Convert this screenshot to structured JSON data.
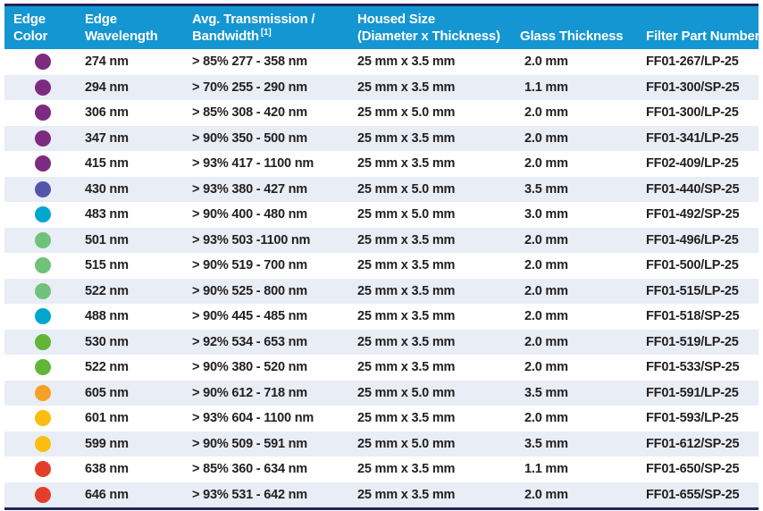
{
  "colors": {
    "header_bg": "#1496D2",
    "header_text": "#FFFFFF",
    "border_dark": "#26245D",
    "row_alt_bg": "#E8EDF6",
    "row_bg": "#FFFFFF",
    "text": "#231F20"
  },
  "dot_palette": {
    "purple": "#7D2B80",
    "indigo": "#5356A8",
    "cyan": "#00A7CF",
    "light-green": "#6EC378",
    "green": "#61B638",
    "orange": "#F6A126",
    "gold": "#FBBE10",
    "red": "#E33E2B"
  },
  "table": {
    "columns": [
      {
        "id": "edge_color",
        "line1": "Edge",
        "line2": "Color"
      },
      {
        "id": "edge_wavelength",
        "line1": "Edge",
        "line2": "Wavelength"
      },
      {
        "id": "transmission",
        "line1": "Avg. Transmission /",
        "line2": "Bandwidth",
        "line2_sup": "[1]"
      },
      {
        "id": "housed_size",
        "line1": "Housed Size",
        "line2": "(Diameter x Thickness)"
      },
      {
        "id": "glass_thickness",
        "line1": "Glass Thickness"
      },
      {
        "id": "part_number",
        "line1": "Filter Part Number"
      }
    ],
    "rows": [
      {
        "edge_color_name": "purple",
        "edge_color_hex": "#7D2B80",
        "edge_wavelength": "274 nm",
        "transmission": "> 85% 277 - 358 nm",
        "housed_size": "25 mm x 3.5 mm",
        "glass_thickness": "2.0 mm",
        "part_number": "FF01-267/LP-25"
      },
      {
        "edge_color_name": "purple",
        "edge_color_hex": "#7D2B80",
        "edge_wavelength": "294 nm",
        "transmission": "> 70% 255 - 290 nm",
        "housed_size": "25 mm x 3.5 mm",
        "glass_thickness": "1.1 mm",
        "part_number": "FF01-300/SP-25"
      },
      {
        "edge_color_name": "purple",
        "edge_color_hex": "#7D2B80",
        "edge_wavelength": "306 nm",
        "transmission": "> 85% 308 - 420 nm",
        "housed_size": "25 mm x 5.0 mm",
        "glass_thickness": "2.0 mm",
        "part_number": "FF01-300/LP-25"
      },
      {
        "edge_color_name": "purple",
        "edge_color_hex": "#7D2B80",
        "edge_wavelength": "347 nm",
        "transmission": "> 90% 350 - 500 nm",
        "housed_size": "25 mm x 3.5 mm",
        "glass_thickness": "2.0 mm",
        "part_number": "FF01-341/LP-25"
      },
      {
        "edge_color_name": "purple",
        "edge_color_hex": "#7D2B80",
        "edge_wavelength": "415 nm",
        "transmission": "> 93% 417 - 1100 nm",
        "housed_size": "25 mm x 3.5 mm",
        "glass_thickness": "2.0 mm",
        "part_number": "FF02-409/LP-25"
      },
      {
        "edge_color_name": "indigo",
        "edge_color_hex": "#5356A8",
        "edge_wavelength": "430 nm",
        "transmission": "> 93% 380 - 427 nm",
        "housed_size": "25 mm x 5.0 mm",
        "glass_thickness": "3.5 mm",
        "part_number": "FF01-440/SP-25"
      },
      {
        "edge_color_name": "cyan",
        "edge_color_hex": "#00A7CF",
        "edge_wavelength": "483 nm",
        "transmission": "> 90% 400 - 480 nm",
        "housed_size": "25 mm x 5.0 mm",
        "glass_thickness": "3.0 mm",
        "part_number": "FF01-492/SP-25"
      },
      {
        "edge_color_name": "light-green",
        "edge_color_hex": "#6EC378",
        "edge_wavelength": "501 nm",
        "transmission": "> 93% 503 -1100 nm",
        "housed_size": "25 mm x 3.5 mm",
        "glass_thickness": "2.0 mm",
        "part_number": "FF01-496/LP-25"
      },
      {
        "edge_color_name": "light-green",
        "edge_color_hex": "#6EC378",
        "edge_wavelength": "515 nm",
        "transmission": "> 90% 519 - 700 nm",
        "housed_size": "25 mm x 3.5 mm",
        "glass_thickness": "2.0 mm",
        "part_number": "FF01-500/LP-25"
      },
      {
        "edge_color_name": "light-green",
        "edge_color_hex": "#6EC378",
        "edge_wavelength": "522 nm",
        "transmission": "> 90% 525 - 800 nm",
        "housed_size": "25 mm x 3.5 mm",
        "glass_thickness": "2.0 mm",
        "part_number": "FF01-515/LP-25"
      },
      {
        "edge_color_name": "cyan",
        "edge_color_hex": "#00A7CF",
        "edge_wavelength": "488 nm",
        "transmission": "> 90% 445 - 485 nm",
        "housed_size": "25 mm x 3.5 mm",
        "glass_thickness": "2.0 mm",
        "part_number": "FF01-518/SP-25"
      },
      {
        "edge_color_name": "green",
        "edge_color_hex": "#61B638",
        "edge_wavelength": "530 nm",
        "transmission": "> 92% 534 - 653 nm",
        "housed_size": "25 mm x 3.5 mm",
        "glass_thickness": "2.0 mm",
        "part_number": "FF01-519/LP-25"
      },
      {
        "edge_color_name": "green",
        "edge_color_hex": "#61B638",
        "edge_wavelength": "522 nm",
        "transmission": "> 90% 380 - 520 nm",
        "housed_size": "25 mm x 3.5 mm",
        "glass_thickness": "2.0 mm",
        "part_number": "FF01-533/SP-25"
      },
      {
        "edge_color_name": "orange",
        "edge_color_hex": "#F6A126",
        "edge_wavelength": "605 nm",
        "transmission": "> 90% 612 - 718 nm",
        "housed_size": "25 mm x 5.0 mm",
        "glass_thickness": "3.5 mm",
        "part_number": "FF01-591/LP-25"
      },
      {
        "edge_color_name": "gold",
        "edge_color_hex": "#FBBE10",
        "edge_wavelength": "601 nm",
        "transmission": "> 93% 604 - 1100 nm",
        "housed_size": "25 mm x 3.5 mm",
        "glass_thickness": "2.0 mm",
        "part_number": "FF01-593/LP-25"
      },
      {
        "edge_color_name": "gold",
        "edge_color_hex": "#FBBE10",
        "edge_wavelength": "599 nm",
        "transmission": "> 90% 509 - 591 nm",
        "housed_size": "25 mm x 5.0 mm",
        "glass_thickness": "3.5 mm",
        "part_number": "FF01-612/SP-25"
      },
      {
        "edge_color_name": "red",
        "edge_color_hex": "#E33E2B",
        "edge_wavelength": "638 nm",
        "transmission": "> 85% 360 - 634 nm",
        "housed_size": "25 mm x 3.5 mm",
        "glass_thickness": "1.1 mm",
        "part_number": "FF01-650/SP-25"
      },
      {
        "edge_color_name": "red",
        "edge_color_hex": "#E33E2B",
        "edge_wavelength": "646 nm",
        "transmission": "> 93% 531 - 642 nm",
        "housed_size": "25 mm x 3.5 mm",
        "glass_thickness": "2.0 mm",
        "part_number": "FF01-655/SP-25"
      }
    ]
  }
}
